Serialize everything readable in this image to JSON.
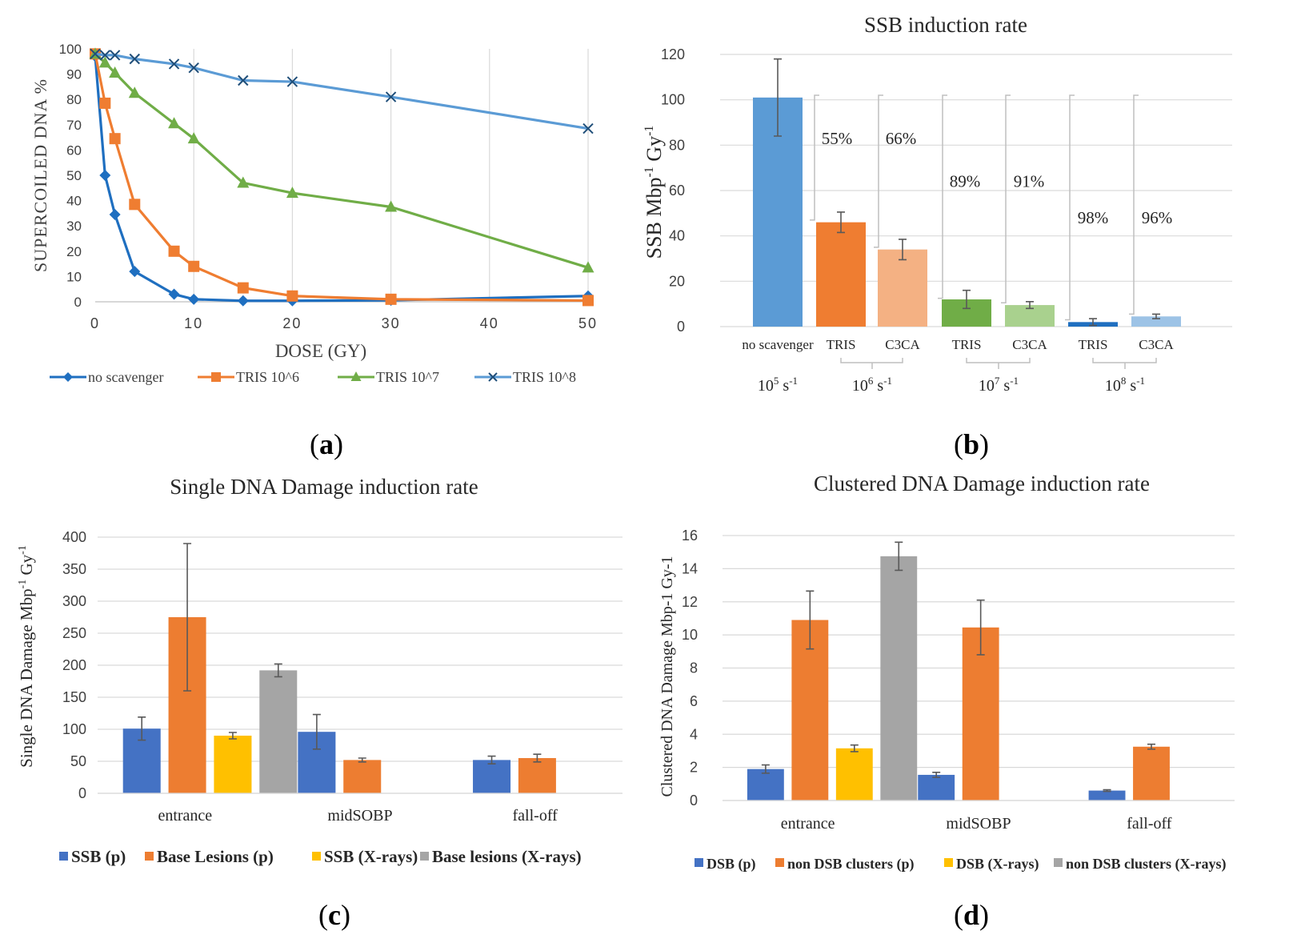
{
  "panels": {
    "a": "(a)",
    "b": "(b)",
    "c": "(c)",
    "d": "(d)"
  },
  "chart_data": [
    {
      "id": "a",
      "type": "line",
      "title": "",
      "xlabel": "DOSE (GY)",
      "ylabel": "SUPERCOILED DNA %",
      "xlim": [
        0,
        50
      ],
      "ylim": [
        0,
        100
      ],
      "xticks": [
        0,
        10,
        20,
        30,
        40,
        50
      ],
      "yticks": [
        0,
        10,
        20,
        30,
        40,
        50,
        60,
        70,
        80,
        90,
        100
      ],
      "grid": "vertical",
      "legend": "bottom",
      "series": [
        {
          "name": "no scavenger",
          "color": "#1f6fc0",
          "marker": "diamond",
          "x": [
            0,
            1,
            2,
            4,
            8,
            10,
            15,
            20,
            30,
            50
          ],
          "y": [
            97,
            50,
            34.5,
            12,
            3,
            1,
            0.4,
            0.4,
            0.6,
            2.3
          ]
        },
        {
          "name": "TRIS 10^6",
          "color": "#ef7d31",
          "marker": "square",
          "x": [
            0,
            1,
            2,
            4,
            8,
            10,
            15,
            20,
            30,
            50
          ],
          "y": [
            98,
            78.5,
            64.5,
            38.5,
            20,
            14,
            5.5,
            2.3,
            1,
            0.5
          ]
        },
        {
          "name": "TRIS 10^7",
          "color": "#70ad47",
          "marker": "triangle",
          "x": [
            0,
            1,
            2,
            4,
            8,
            10,
            15,
            20,
            30,
            50
          ],
          "y": [
            98,
            94.5,
            90.5,
            82.5,
            70.5,
            64.5,
            47,
            43,
            37.5,
            13.5
          ]
        },
        {
          "name": "TRIS 10^8",
          "color": "#5b9bd5",
          "marker": "x",
          "x": [
            0,
            1,
            2,
            4,
            8,
            10,
            15,
            20,
            30,
            50
          ],
          "y": [
            98,
            97.5,
            97.5,
            96,
            94,
            92.5,
            87.5,
            87,
            81,
            68.5
          ]
        }
      ]
    },
    {
      "id": "b",
      "type": "bar",
      "title": "SSB induction rate",
      "ylabel": "SSB Mbp",
      "ylabel_sup1": "-1",
      "ylabel_mid": "Gy",
      "ylabel_sup2": "-1",
      "ylim": [
        0,
        120
      ],
      "yticks": [
        0,
        20,
        40,
        60,
        80,
        100,
        120
      ],
      "grid": "horizontal",
      "bars": [
        {
          "label": "no scavenger",
          "value": 101,
          "err": 17,
          "color": "#5b9bd5"
        },
        {
          "label": "TRIS",
          "value": 46,
          "err": 4.5,
          "color": "#ef7d31"
        },
        {
          "label": "C3CA",
          "value": 34,
          "err": 4.5,
          "color": "#f4b183"
        },
        {
          "label": "TRIS",
          "value": 12,
          "err": 4,
          "color": "#70ad47"
        },
        {
          "label": "C3CA",
          "value": 9.5,
          "err": 1.5,
          "color": "#a9d18e"
        },
        {
          "label": "TRIS",
          "value": 2,
          "err": 1.5,
          "color": "#1f6fc0"
        },
        {
          "label": "C3CA",
          "value": 4.5,
          "err": 1,
          "color": "#9dc3e6"
        }
      ],
      "percentages": [
        {
          "text": "55%",
          "y": 83
        },
        {
          "text": "66%",
          "y": 83
        },
        {
          "text": "89%",
          "y": 64
        },
        {
          "text": "91%",
          "y": 64
        },
        {
          "text": "98%",
          "y": 48
        },
        {
          "text": "96%",
          "y": 48
        }
      ],
      "groups": [
        {
          "base": "10",
          "exp": "5",
          "unit": " s",
          "unit_exp": "-1"
        },
        {
          "base": "10",
          "exp": "6",
          "unit": " s",
          "unit_exp": "-1"
        },
        {
          "base": "10",
          "exp": "7",
          "unit": " s",
          "unit_exp": "-1"
        },
        {
          "base": "10",
          "exp": "8",
          "unit": " s",
          "unit_exp": "-1"
        }
      ]
    },
    {
      "id": "c",
      "type": "bar",
      "title": "Single DNA Damage induction rate",
      "ylabel": "Single DNA Damage Mbp",
      "ylabel_sup1": "-1",
      "ylabel_mid": " Gy",
      "ylabel_sup2": "-1",
      "ylim": [
        0,
        400
      ],
      "yticks": [
        0,
        50,
        100,
        150,
        200,
        250,
        300,
        350,
        400
      ],
      "grid": "horizontal",
      "legend": "bottom",
      "categories": [
        "entrance",
        "midSOBP",
        "fall-off"
      ],
      "series": [
        {
          "name": "SSB (p)",
          "color": "#4472c4",
          "values": [
            101,
            96,
            52
          ],
          "err": [
            18,
            27,
            6
          ]
        },
        {
          "name": "Base Lesions (p)",
          "color": "#ed7d31",
          "values": [
            275,
            52,
            55
          ],
          "err": [
            115,
            3,
            6
          ]
        },
        {
          "name": "SSB (X-rays)",
          "color": "#ffc000",
          "values": [
            90,
            null,
            null
          ],
          "err": [
            5,
            null,
            null
          ]
        },
        {
          "name": "Base lesions (X-rays)",
          "color": "#a5a5a5",
          "values": [
            192,
            null,
            null
          ],
          "err": [
            10,
            null,
            null
          ]
        }
      ]
    },
    {
      "id": "d",
      "type": "bar",
      "title": "Clustered DNA Damage induction rate",
      "ylabel": "Clustered DNA Damage Mbp-1 Gy-1",
      "ylim": [
        0,
        16
      ],
      "yticks": [
        0,
        2,
        4,
        6,
        8,
        10,
        12,
        14,
        16
      ],
      "grid": "horizontal",
      "legend": "bottom",
      "categories": [
        "entrance",
        "midSOBP",
        "fall-off"
      ],
      "series": [
        {
          "name": "DSB (p)",
          "color": "#4472c4",
          "values": [
            1.9,
            1.55,
            0.6
          ],
          "err": [
            0.25,
            0.15,
            0.05
          ]
        },
        {
          "name": "non DSB clusters (p)",
          "color": "#ed7d31",
          "values": [
            10.9,
            10.45,
            3.25
          ],
          "err": [
            1.75,
            1.65,
            0.15
          ]
        },
        {
          "name": "DSB (X-rays)",
          "color": "#ffc000",
          "values": [
            3.15,
            null,
            null
          ],
          "err": [
            0.2,
            null,
            null
          ]
        },
        {
          "name": "non DSB clusters (X-rays)",
          "color": "#a5a5a5",
          "values": [
            14.75,
            null,
            null
          ],
          "err": [
            0.85,
            null,
            null
          ]
        }
      ]
    }
  ]
}
